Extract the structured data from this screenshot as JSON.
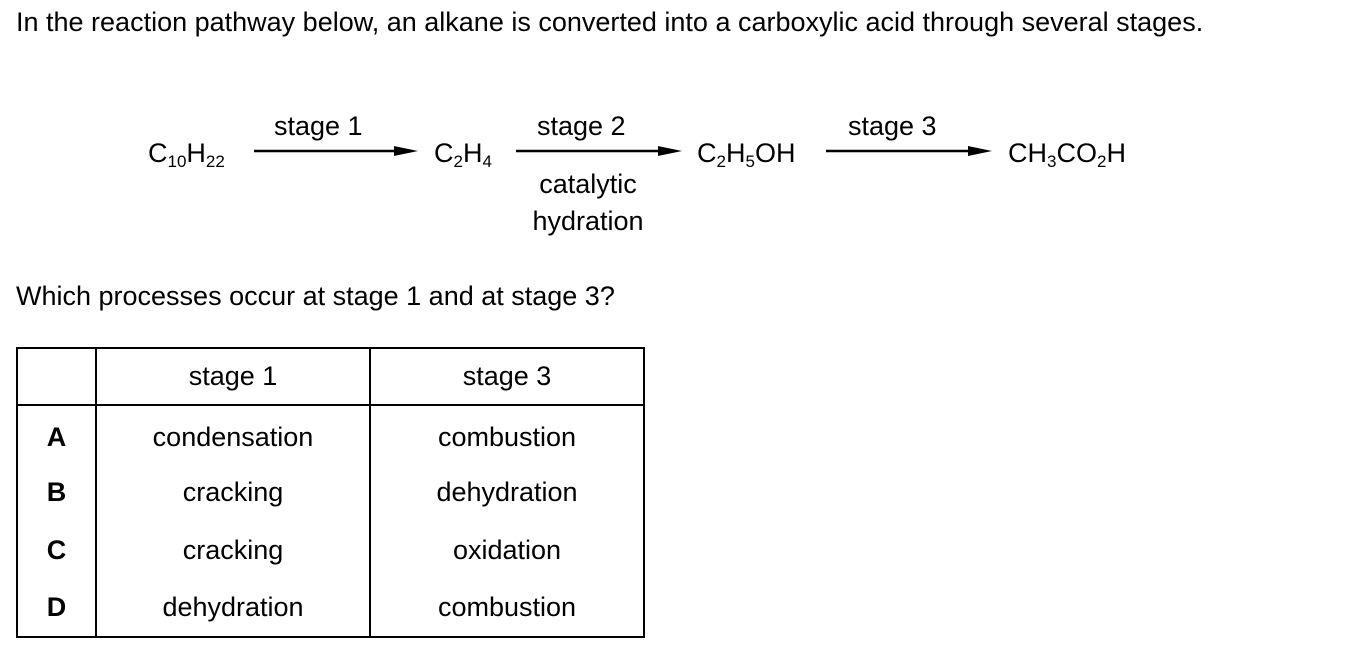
{
  "intro": "In the reaction pathway below, an alkane is converted into a carboxylic acid through several stages.",
  "pathway": {
    "start": {
      "parts": [
        [
          "C",
          ""
        ],
        [
          "",
          "10"
        ],
        [
          "H",
          ""
        ],
        [
          "",
          "22"
        ]
      ],
      "text": "C10H22"
    },
    "stage1_label": "stage 1",
    "product1": {
      "text": "C2H4"
    },
    "stage2_label": "stage 2",
    "stage2_condition_line1": "catalytic",
    "stage2_condition_line2": "hydration",
    "product2": {
      "text": "C2H5OH"
    },
    "stage3_label": "stage 3",
    "product3": {
      "text": "CH3CO2H"
    }
  },
  "question": "Which processes occur at stage 1 and at stage 3?",
  "table": {
    "headers": [
      "",
      "stage 1",
      "stage 3"
    ],
    "rows": [
      {
        "letter": "A",
        "stage1": "condensation",
        "stage3": "combustion"
      },
      {
        "letter": "B",
        "stage1": "cracking",
        "stage3": "dehydration"
      },
      {
        "letter": "C",
        "stage1": "cracking",
        "stage3": "oxidation"
      },
      {
        "letter": "D",
        "stage1": "dehydration",
        "stage3": "combustion"
      }
    ]
  }
}
